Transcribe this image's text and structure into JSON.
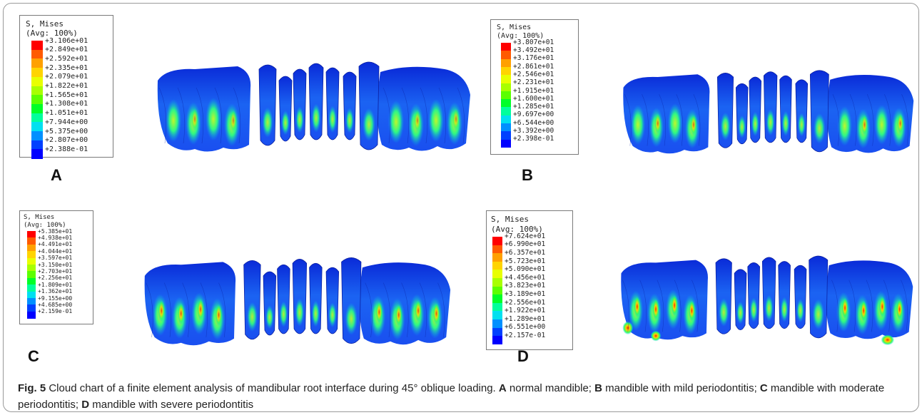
{
  "figure": {
    "panels": [
      {
        "id": "A",
        "label": "A",
        "legend_title": "S, Mises",
        "legend_avg": "(Avg: 100%)",
        "values": [
          "+3.106e+01",
          "+2.849e+01",
          "+2.592e+01",
          "+2.335e+01",
          "+2.079e+01",
          "+1.822e+01",
          "+1.565e+01",
          "+1.308e+01",
          "+1.051e+01",
          "+7.944e+00",
          "+5.375e+00",
          "+2.807e+00",
          "+2.388e-01"
        ]
      },
      {
        "id": "B",
        "label": "B",
        "legend_title": "S, Mises",
        "legend_avg": "(Avg: 100%)",
        "values": [
          "+3.807e+01",
          "+3.492e+01",
          "+3.176e+01",
          "+2.861e+01",
          "+2.546e+01",
          "+2.231e+01",
          "+1.915e+01",
          "+1.600e+01",
          "+1.285e+01",
          "+9.697e+00",
          "+6.544e+00",
          "+3.392e+00",
          "+2.398e-01"
        ]
      },
      {
        "id": "C",
        "label": "C",
        "legend_title": "S, Mises",
        "legend_avg": "(Avg: 100%)",
        "values": [
          "+5.385e+01",
          "+4.938e+01",
          "+4.491e+01",
          "+4.044e+01",
          "+3.597e+01",
          "+3.150e+01",
          "+2.703e+01",
          "+2.256e+01",
          "+1.809e+01",
          "+1.362e+01",
          "+9.155e+00",
          "+4.685e+00",
          "+2.159e-01"
        ]
      },
      {
        "id": "D",
        "label": "D",
        "legend_title": "S, Mises",
        "legend_avg": "(Avg: 100%)",
        "values": [
          "+7.624e+01",
          "+6.990e+01",
          "+6.357e+01",
          "+5.723e+01",
          "+5.090e+01",
          "+4.456e+01",
          "+3.823e+01",
          "+3.189e+01",
          "+2.556e+01",
          "+1.922e+01",
          "+1.289e+01",
          "+6.551e+00",
          "+2.157e-01"
        ]
      }
    ],
    "colors": [
      "#ff0000",
      "#ff5a00",
      "#ffa000",
      "#ffd400",
      "#e8ff00",
      "#a8ff00",
      "#5cff00",
      "#00ff28",
      "#00ff9c",
      "#00e0f0",
      "#0090ff",
      "#0040ff",
      "#0000ff"
    ],
    "caption": {
      "fig_label": "Fig. 5",
      "intro": "Cloud chart of a finite element analysis of mandibular root interface during 45° oblique loading.",
      "items": [
        {
          "key": "A",
          "text": " normal mandible; "
        },
        {
          "key": "B",
          "text": " mandible with mild periodontitis; "
        },
        {
          "key": "C",
          "text": " mandible with moderate periodontitis; "
        },
        {
          "key": "D",
          "text": " mandible with severe periodontitis"
        }
      ]
    }
  }
}
